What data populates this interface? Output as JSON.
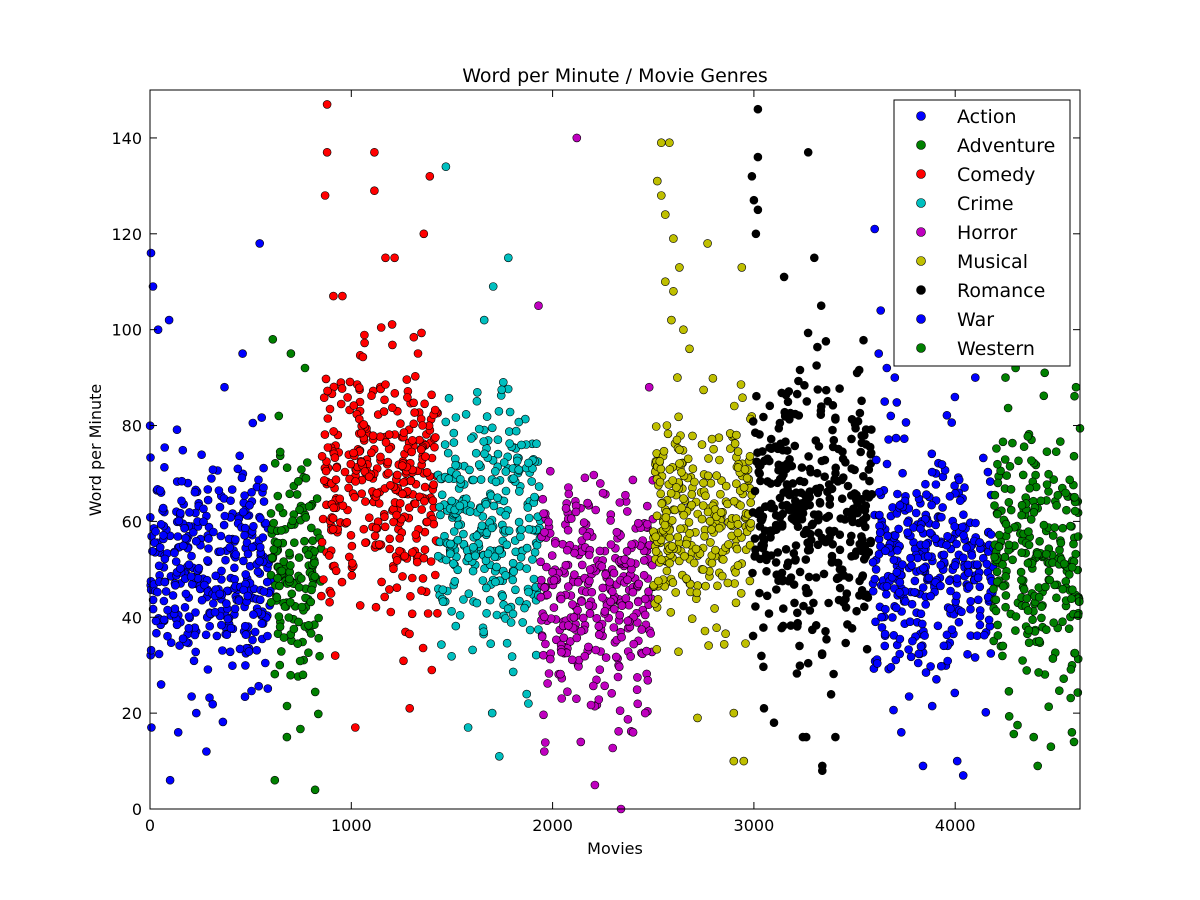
{
  "chart_data": {
    "type": "scatter",
    "title": "Word per Minute / Movie Genres",
    "xlabel": "Movies",
    "ylabel": "Word per Minute",
    "xlim": [
      0,
      4620
    ],
    "ylim": [
      0,
      150
    ],
    "xticks": [
      0,
      1000,
      2000,
      3000,
      4000
    ],
    "yticks": [
      0,
      20,
      40,
      60,
      80,
      100,
      120,
      140
    ],
    "grid": false,
    "legend_position": "top-right",
    "series": [
      {
        "name": "Action",
        "color": "#0000ff",
        "x_range": [
          0,
          600
        ],
        "mean": 50,
        "spread": 11,
        "outliers": [
          [
            5,
            116
          ],
          [
            15,
            109
          ],
          [
            40,
            100
          ],
          [
            95,
            102
          ],
          [
            100,
            6
          ],
          [
            140,
            16
          ],
          [
            280,
            12
          ],
          [
            545,
            118
          ],
          [
            460,
            95
          ],
          [
            370,
            88
          ],
          [
            230,
            20
          ],
          [
            55,
            26
          ]
        ]
      },
      {
        "name": "Adventure",
        "color": "#008000",
        "x_range": [
          600,
          850
        ],
        "mean": 48,
        "spread": 11,
        "outliers": [
          [
            620,
            6
          ],
          [
            820,
            4
          ],
          [
            610,
            98
          ],
          [
            680,
            15
          ],
          [
            700,
            95
          ],
          [
            770,
            92
          ],
          [
            640,
            82
          ],
          [
            760,
            28
          ]
        ]
      },
      {
        "name": "Comedy",
        "color": "#ff0000",
        "x_range": [
          850,
          1430
        ],
        "mean": 68,
        "spread": 13,
        "outliers": [
          [
            880,
            147
          ],
          [
            880,
            137
          ],
          [
            1115,
            137
          ],
          [
            1115,
            129
          ],
          [
            870,
            128
          ],
          [
            1390,
            132
          ],
          [
            1360,
            120
          ],
          [
            1170,
            115
          ],
          [
            1215,
            115
          ],
          [
            1020,
            17
          ],
          [
            1290,
            21
          ],
          [
            1400,
            29
          ],
          [
            920,
            32
          ]
        ]
      },
      {
        "name": "Crime",
        "color": "#00bfbf",
        "x_range": [
          1430,
          1940
        ],
        "mean": 58,
        "spread": 13,
        "outliers": [
          [
            1470,
            134
          ],
          [
            1780,
            115
          ],
          [
            1705,
            109
          ],
          [
            1735,
            11
          ],
          [
            1580,
            17
          ],
          [
            1700,
            20
          ],
          [
            1880,
            22
          ],
          [
            1660,
            102
          ]
        ]
      },
      {
        "name": "Horror",
        "color": "#bf00bf",
        "x_range": [
          1940,
          2500
        ],
        "mean": 45,
        "spread": 11,
        "outliers": [
          [
            2120,
            140
          ],
          [
            1930,
            105
          ],
          [
            2210,
            5
          ],
          [
            2340,
            0
          ],
          [
            2140,
            14
          ],
          [
            2400,
            16
          ],
          [
            2460,
            20
          ],
          [
            2480,
            88
          ]
        ]
      },
      {
        "name": "Musical",
        "color": "#bfbf00",
        "x_range": [
          2500,
          2990
        ],
        "mean": 60,
        "spread": 11,
        "outliers": [
          [
            2540,
            139
          ],
          [
            2580,
            139
          ],
          [
            2520,
            131
          ],
          [
            2540,
            128
          ],
          [
            2560,
            124
          ],
          [
            2600,
            119
          ],
          [
            2720,
            19
          ],
          [
            2900,
            20
          ],
          [
            2900,
            10
          ],
          [
            2950,
            10
          ],
          [
            2940,
            113
          ],
          [
            2770,
            118
          ],
          [
            2600,
            108
          ],
          [
            2650,
            100
          ],
          [
            2680,
            96
          ],
          [
            2620,
            90
          ],
          [
            2560,
            110
          ],
          [
            2590,
            102
          ],
          [
            2630,
            113
          ]
        ]
      },
      {
        "name": "Romance",
        "color": "#000000",
        "x_range": [
          2990,
          3590
        ],
        "mean": 60,
        "spread": 15,
        "outliers": [
          [
            3020,
            146
          ],
          [
            3020,
            136
          ],
          [
            3270,
            137
          ],
          [
            2990,
            132
          ],
          [
            3000,
            127
          ],
          [
            3020,
            125
          ],
          [
            3010,
            120
          ],
          [
            3300,
            115
          ],
          [
            3150,
            111
          ],
          [
            3340,
            9
          ],
          [
            3340,
            8
          ],
          [
            3260,
            15
          ],
          [
            3100,
            18
          ],
          [
            3050,
            21
          ]
        ]
      },
      {
        "name": "War",
        "color": "#0000ff",
        "x_range": [
          3590,
          4190
        ],
        "mean": 52,
        "spread": 12,
        "outliers": [
          [
            3600,
            121
          ],
          [
            3630,
            104
          ],
          [
            3840,
            9
          ],
          [
            4040,
            7
          ],
          [
            4010,
            10
          ],
          [
            3620,
            95
          ],
          [
            3660,
            92
          ],
          [
            3700,
            90
          ],
          [
            4100,
            90
          ],
          [
            3650,
            85
          ],
          [
            3680,
            82
          ]
        ]
      },
      {
        "name": "Western",
        "color": "#008000",
        "x_range": [
          4190,
          4620
        ],
        "mean": 52,
        "spread": 13,
        "outliers": [
          [
            4410,
            9
          ],
          [
            4390,
            15
          ],
          [
            4590,
            14
          ],
          [
            4580,
            16
          ],
          [
            4600,
            88
          ],
          [
            4310,
            94
          ],
          [
            4300,
            92
          ],
          [
            4250,
            90
          ]
        ]
      }
    ]
  }
}
